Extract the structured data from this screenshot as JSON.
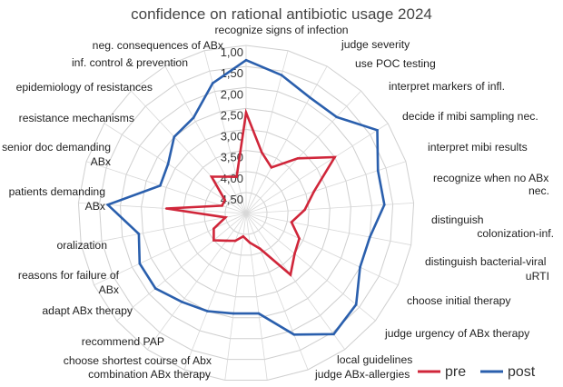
{
  "chart_data": {
    "type": "radar",
    "title": "confidence on rational antibiotic usage 2024",
    "radial_axis": {
      "range": [
        1.0,
        5.0
      ],
      "direction": "reversed (1.00 at outer edge, 5.00 at center)",
      "tick_labels": [
        "1,00",
        "1,50",
        "2,00",
        "2,50",
        "3,00",
        "3,50",
        "4,00",
        "4,50"
      ]
    },
    "categories": [
      "recognize signs of infection",
      "judge severity",
      "use POC testing",
      "interpret markers of infl.",
      "decide if mibi sampling nec.",
      "interpret mibi results",
      "recognize when no ABx nec.",
      "distinguish colonization-inf.",
      "distinguish bacterial-viral uRTI",
      "choose initial therapy",
      "judge urgency of ABx therapy",
      "local guidelines",
      "judge ABx-allergies",
      "combination ABx therapy",
      "choose shortest course of Abx",
      "recommend PAP",
      "adapt ABx therapy",
      "reasons for failure of ABx",
      "oralization",
      "patients demanding ABx",
      "senior doc demanding ABx",
      "resistance mechanisms",
      "epidemiology of resistances",
      "inf. control & prevention",
      "neg. consequences of ABx"
    ],
    "series": [
      {
        "name": "pre",
        "color": "#d0263a",
        "values": [
          2.6,
          3.5,
          3.75,
          3.2,
          2.5,
          3.3,
          3.6,
          3.9,
          3.6,
          3.5,
          3.2,
          4.1,
          4.3,
          4.45,
          4.3,
          4.2,
          4.0,
          4.15,
          4.5,
          3.1,
          4.4,
          4.4,
          3.8,
          4.0,
          4.1
        ]
      },
      {
        "name": "post",
        "color": "#2a5fad",
        "values": [
          1.35,
          1.6,
          1.85,
          1.85,
          1.3,
          1.7,
          1.7,
          2.0,
          2.0,
          1.6,
          1.45,
          1.9,
          2.6,
          2.6,
          2.5,
          2.4,
          2.2,
          2.2,
          2.4,
          1.7,
          2.85,
          2.8,
          2.5,
          2.4,
          1.8
        ]
      }
    ],
    "legend": {
      "position": "bottom-right",
      "entries": [
        "pre",
        "post"
      ]
    },
    "grid": true
  }
}
